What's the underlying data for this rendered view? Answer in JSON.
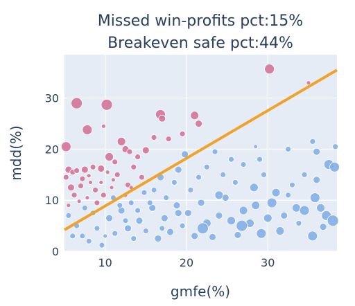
{
  "chart_data": {
    "type": "scatter",
    "title": [
      "Missed win-profits pct:15%",
      "Breakeven safe pct:44%"
    ],
    "xlabel": "gmfe(%)",
    "ylabel": "mdd(%)",
    "xlim": [
      5,
      38.5
    ],
    "ylim": [
      0,
      38.5
    ],
    "xticks": [
      10,
      20,
      30
    ],
    "yticks": [
      0,
      10,
      20,
      30
    ],
    "grid": true,
    "legend": "none",
    "colors": {
      "plot_bg": "#e5ecf6",
      "grid": "#ffffff",
      "above": "#d4769a",
      "below": "#85b0e6",
      "line": "#f0a22b",
      "text": "#2a3f5f"
    },
    "line": {
      "x": [
        5,
        38.5
      ],
      "y": [
        4.2,
        35.5
      ]
    },
    "series": [
      {
        "marker_color": "above",
        "points": [
          [
            5.2,
            20.5,
            7
          ],
          [
            6.5,
            29,
            8
          ],
          [
            7.8,
            23.8,
            7
          ],
          [
            10.2,
            28.7,
            8
          ],
          [
            16.8,
            26.8,
            7
          ],
          [
            17,
            26,
            5
          ],
          [
            21,
            26.6,
            6
          ],
          [
            21.5,
            25,
            5
          ],
          [
            30.2,
            35.7,
            7
          ],
          [
            35,
            33,
            3
          ],
          [
            9.8,
            24.5,
            3
          ],
          [
            5.5,
            16,
            5
          ],
          [
            6,
            15.5,
            4
          ],
          [
            6.5,
            15.8,
            4
          ],
          [
            7.5,
            16,
            5
          ],
          [
            8.5,
            16.5,
            4
          ],
          [
            9.5,
            16.2,
            5
          ],
          [
            5.2,
            14.5,
            4
          ],
          [
            7.2,
            14.2,
            4
          ],
          [
            8.2,
            13.5,
            3
          ],
          [
            5.8,
            12.5,
            5
          ],
          [
            7,
            12.8,
            4
          ],
          [
            8.8,
            12,
            4
          ],
          [
            6.2,
            11,
            4
          ],
          [
            7.8,
            10.5,
            3
          ],
          [
            5.5,
            9,
            3
          ],
          [
            9,
            9.5,
            4
          ],
          [
            6.8,
            9.8,
            3
          ],
          [
            10.5,
            18.5,
            6
          ],
          [
            11.2,
            17.5,
            4
          ],
          [
            12,
            21.5,
            6
          ],
          [
            12.5,
            20,
            5
          ],
          [
            13,
            19.5,
            4
          ],
          [
            11.5,
            15,
            4
          ],
          [
            13.5,
            16.5,
            4
          ],
          [
            14,
            18.5,
            4
          ],
          [
            15,
            19.8,
            5
          ],
          [
            16,
            22.3,
            4
          ],
          [
            17.8,
            22,
            4
          ],
          [
            19.5,
            23,
            4
          ],
          [
            14.5,
            14.5,
            4
          ],
          [
            12.8,
            13,
            4
          ],
          [
            13.2,
            12.5,
            3
          ],
          [
            10.8,
            12.5,
            3
          ],
          [
            12.5,
            11,
            3
          ],
          [
            11,
            14,
            3
          ],
          [
            9.5,
            13.5,
            3
          ],
          [
            9.8,
            11,
            4
          ],
          [
            10.3,
            15.5,
            3
          ],
          [
            8,
            14.8,
            3
          ]
        ]
      },
      {
        "marker_color": "below",
        "points": [
          [
            5.5,
            7,
            4
          ],
          [
            6.5,
            5,
            4
          ],
          [
            7.2,
            3,
            4
          ],
          [
            8,
            2,
            4
          ],
          [
            9,
            4.5,
            4
          ],
          [
            9.6,
            1.2,
            4
          ],
          [
            10.5,
            6.5,
            5
          ],
          [
            11.2,
            3.5,
            4
          ],
          [
            12,
            8,
            5
          ],
          [
            12.8,
            4.5,
            5
          ],
          [
            13.5,
            2.5,
            4
          ],
          [
            14.2,
            6,
            5
          ],
          [
            15,
            4,
            4
          ],
          [
            15.8,
            8.5,
            5
          ],
          [
            16.5,
            2.5,
            5
          ],
          [
            17.3,
            6.5,
            5
          ],
          [
            18,
            3.8,
            5
          ],
          [
            18.8,
            9,
            5
          ],
          [
            19.5,
            5,
            4
          ],
          [
            20.2,
            7.5,
            5
          ],
          [
            21,
            3,
            5
          ],
          [
            21.8,
            9.5,
            5
          ],
          [
            22.5,
            5.5,
            6
          ],
          [
            23.2,
            2.8,
            5
          ],
          [
            24,
            7,
            5
          ],
          [
            24.8,
            10.5,
            5
          ],
          [
            25.5,
            6,
            6
          ],
          [
            26.3,
            3.2,
            5
          ],
          [
            27,
            8,
            6
          ],
          [
            27.8,
            5.5,
            6
          ],
          [
            28.5,
            9,
            6
          ],
          [
            29.2,
            3.5,
            7
          ],
          [
            30,
            6.5,
            6
          ],
          [
            31,
            11.5,
            6
          ],
          [
            32,
            7,
            5
          ],
          [
            33.5,
            8.5,
            6
          ],
          [
            34.5,
            8,
            7
          ],
          [
            35.5,
            3,
            7
          ],
          [
            35.8,
            10.5,
            7
          ],
          [
            36.5,
            8.5,
            6
          ],
          [
            37.2,
            7,
            7
          ],
          [
            38,
            6,
            8
          ],
          [
            37.5,
            17,
            7
          ],
          [
            36,
            14,
            5
          ],
          [
            35.5,
            21.5,
            4
          ],
          [
            36,
            19.5,
            5
          ],
          [
            34.5,
            15,
            4
          ],
          [
            33,
            13,
            4
          ],
          [
            32.5,
            11,
            4
          ],
          [
            30.5,
            9.5,
            7
          ],
          [
            29.5,
            15,
            4
          ],
          [
            29,
            18,
            4
          ],
          [
            28.5,
            20.5,
            3
          ],
          [
            27,
            17,
            4
          ],
          [
            26,
            13.5,
            4
          ],
          [
            25.5,
            18,
            4
          ],
          [
            24.5,
            15,
            4
          ],
          [
            23.5,
            19.5,
            4
          ],
          [
            22.5,
            16.5,
            4
          ],
          [
            21.5,
            14.5,
            4
          ],
          [
            20.5,
            12,
            4
          ],
          [
            19.8,
            19,
            5
          ],
          [
            19,
            16,
            5
          ],
          [
            18.5,
            13.5,
            4
          ],
          [
            17.5,
            10.5,
            4
          ],
          [
            16.8,
            14.5,
            5
          ],
          [
            16,
            12,
            4
          ],
          [
            15.5,
            9.5,
            4
          ],
          [
            14.8,
            11.5,
            4
          ],
          [
            14,
            8,
            4
          ],
          [
            13.2,
            9.5,
            4
          ],
          [
            12.5,
            6,
            4
          ],
          [
            11.8,
            9,
            4
          ],
          [
            11,
            10.5,
            4
          ],
          [
            10,
            3,
            3
          ],
          [
            8.5,
            7.5,
            4
          ],
          [
            7.5,
            8.5,
            4
          ],
          [
            6,
            3,
            4
          ],
          [
            26.8,
            5,
            8
          ],
          [
            22,
            4.5,
            8
          ],
          [
            31.5,
            4,
            6
          ],
          [
            28.3,
            12.5,
            6
          ],
          [
            33.8,
            5.5,
            4
          ],
          [
            36.8,
            4.8,
            5
          ],
          [
            38.3,
            20.5,
            4
          ],
          [
            38.2,
            16.5,
            7
          ],
          [
            32.5,
            20,
            4
          ],
          [
            24,
            11,
            6
          ],
          [
            19,
            7.5,
            5
          ],
          [
            17,
            4.5,
            4
          ]
        ]
      }
    ]
  }
}
